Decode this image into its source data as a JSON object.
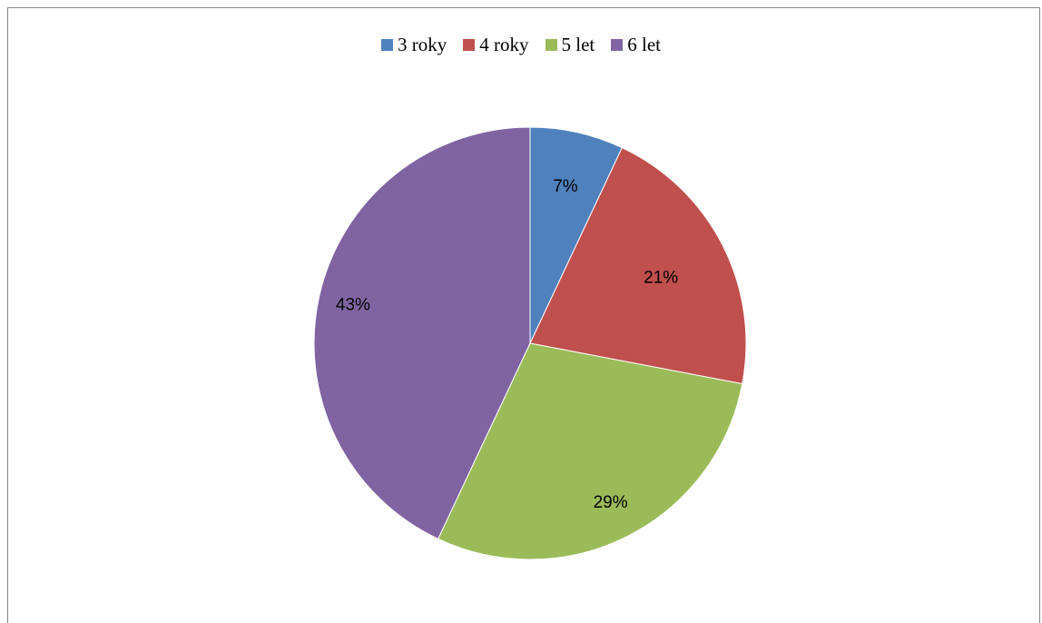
{
  "chart_data": {
    "type": "pie",
    "title": "",
    "legend_position": "top",
    "categories": [
      "3 roky",
      "4 roky",
      "5 let",
      "6 let"
    ],
    "values": [
      7,
      21,
      29,
      43
    ],
    "labels": [
      "7%",
      "21%",
      "29%",
      "43%"
    ],
    "colors": [
      "#4f81bd",
      "#c0504d",
      "#9bbb59",
      "#8064a2"
    ]
  }
}
